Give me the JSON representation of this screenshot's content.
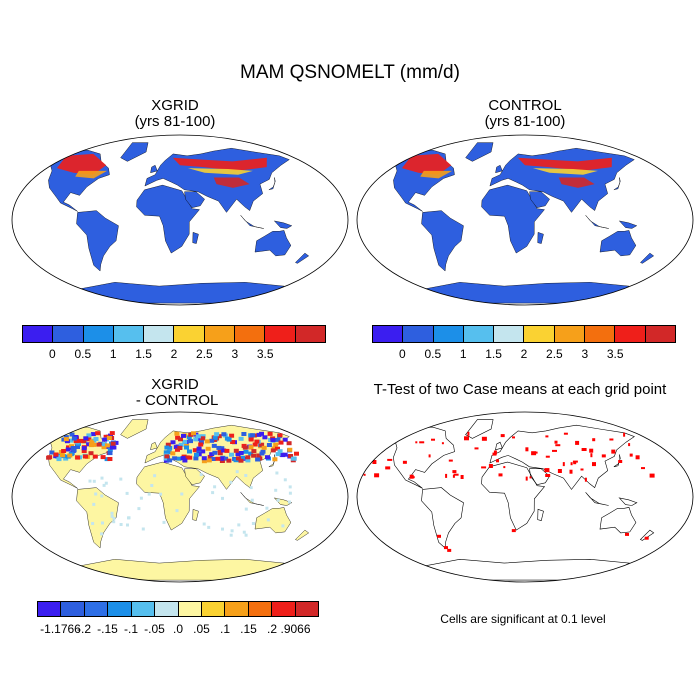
{
  "figure": {
    "title": "MAM QSNOMELT (mm/d)",
    "panels": [
      {
        "id": "xgrid",
        "title": "XGRID\n(yrs 81-100)"
      },
      {
        "id": "control",
        "title": "CONTROL\n(yrs 81-100)"
      },
      {
        "id": "diff",
        "title": "XGRID\n - CONTROL"
      },
      {
        "id": "ttest",
        "title": "T-Test of two Case means at each grid point"
      }
    ],
    "colorbar_main": {
      "colors": [
        "#3b1ef0",
        "#2e5fdf",
        "#1c8fe8",
        "#56bfee",
        "#c4e5ee",
        "#fad232",
        "#f6a01a",
        "#f36f0e",
        "#ef1f1a",
        "#d22828"
      ],
      "labels": [
        "0",
        "0.5",
        "1",
        "1.5",
        "2",
        "2.5",
        "3",
        "3.5"
      ]
    },
    "colorbar_diff": {
      "colors": [
        "#3b1ef0",
        "#2e5fdf",
        "#2e6fe6",
        "#1c8fe8",
        "#56bfee",
        "#c4e5ee",
        "#fdf6a2",
        "#fad232",
        "#f6a01a",
        "#f36f0e",
        "#ef1f1a",
        "#d22828"
      ],
      "labels": [
        "-1.1766",
        "-.2",
        "-.15",
        "-.1",
        "-.05",
        ".0",
        ".05",
        ".1",
        ".15",
        ".2",
        ".9066"
      ]
    },
    "ttest_note": "Cells are significant at 0.1 level",
    "land_fill": {
      "xgrid": "#2e5fdf",
      "control": "#2e5fdf",
      "diff": "#fdf6a2",
      "ttest": "none"
    },
    "significant_color": "#ff0000"
  }
}
